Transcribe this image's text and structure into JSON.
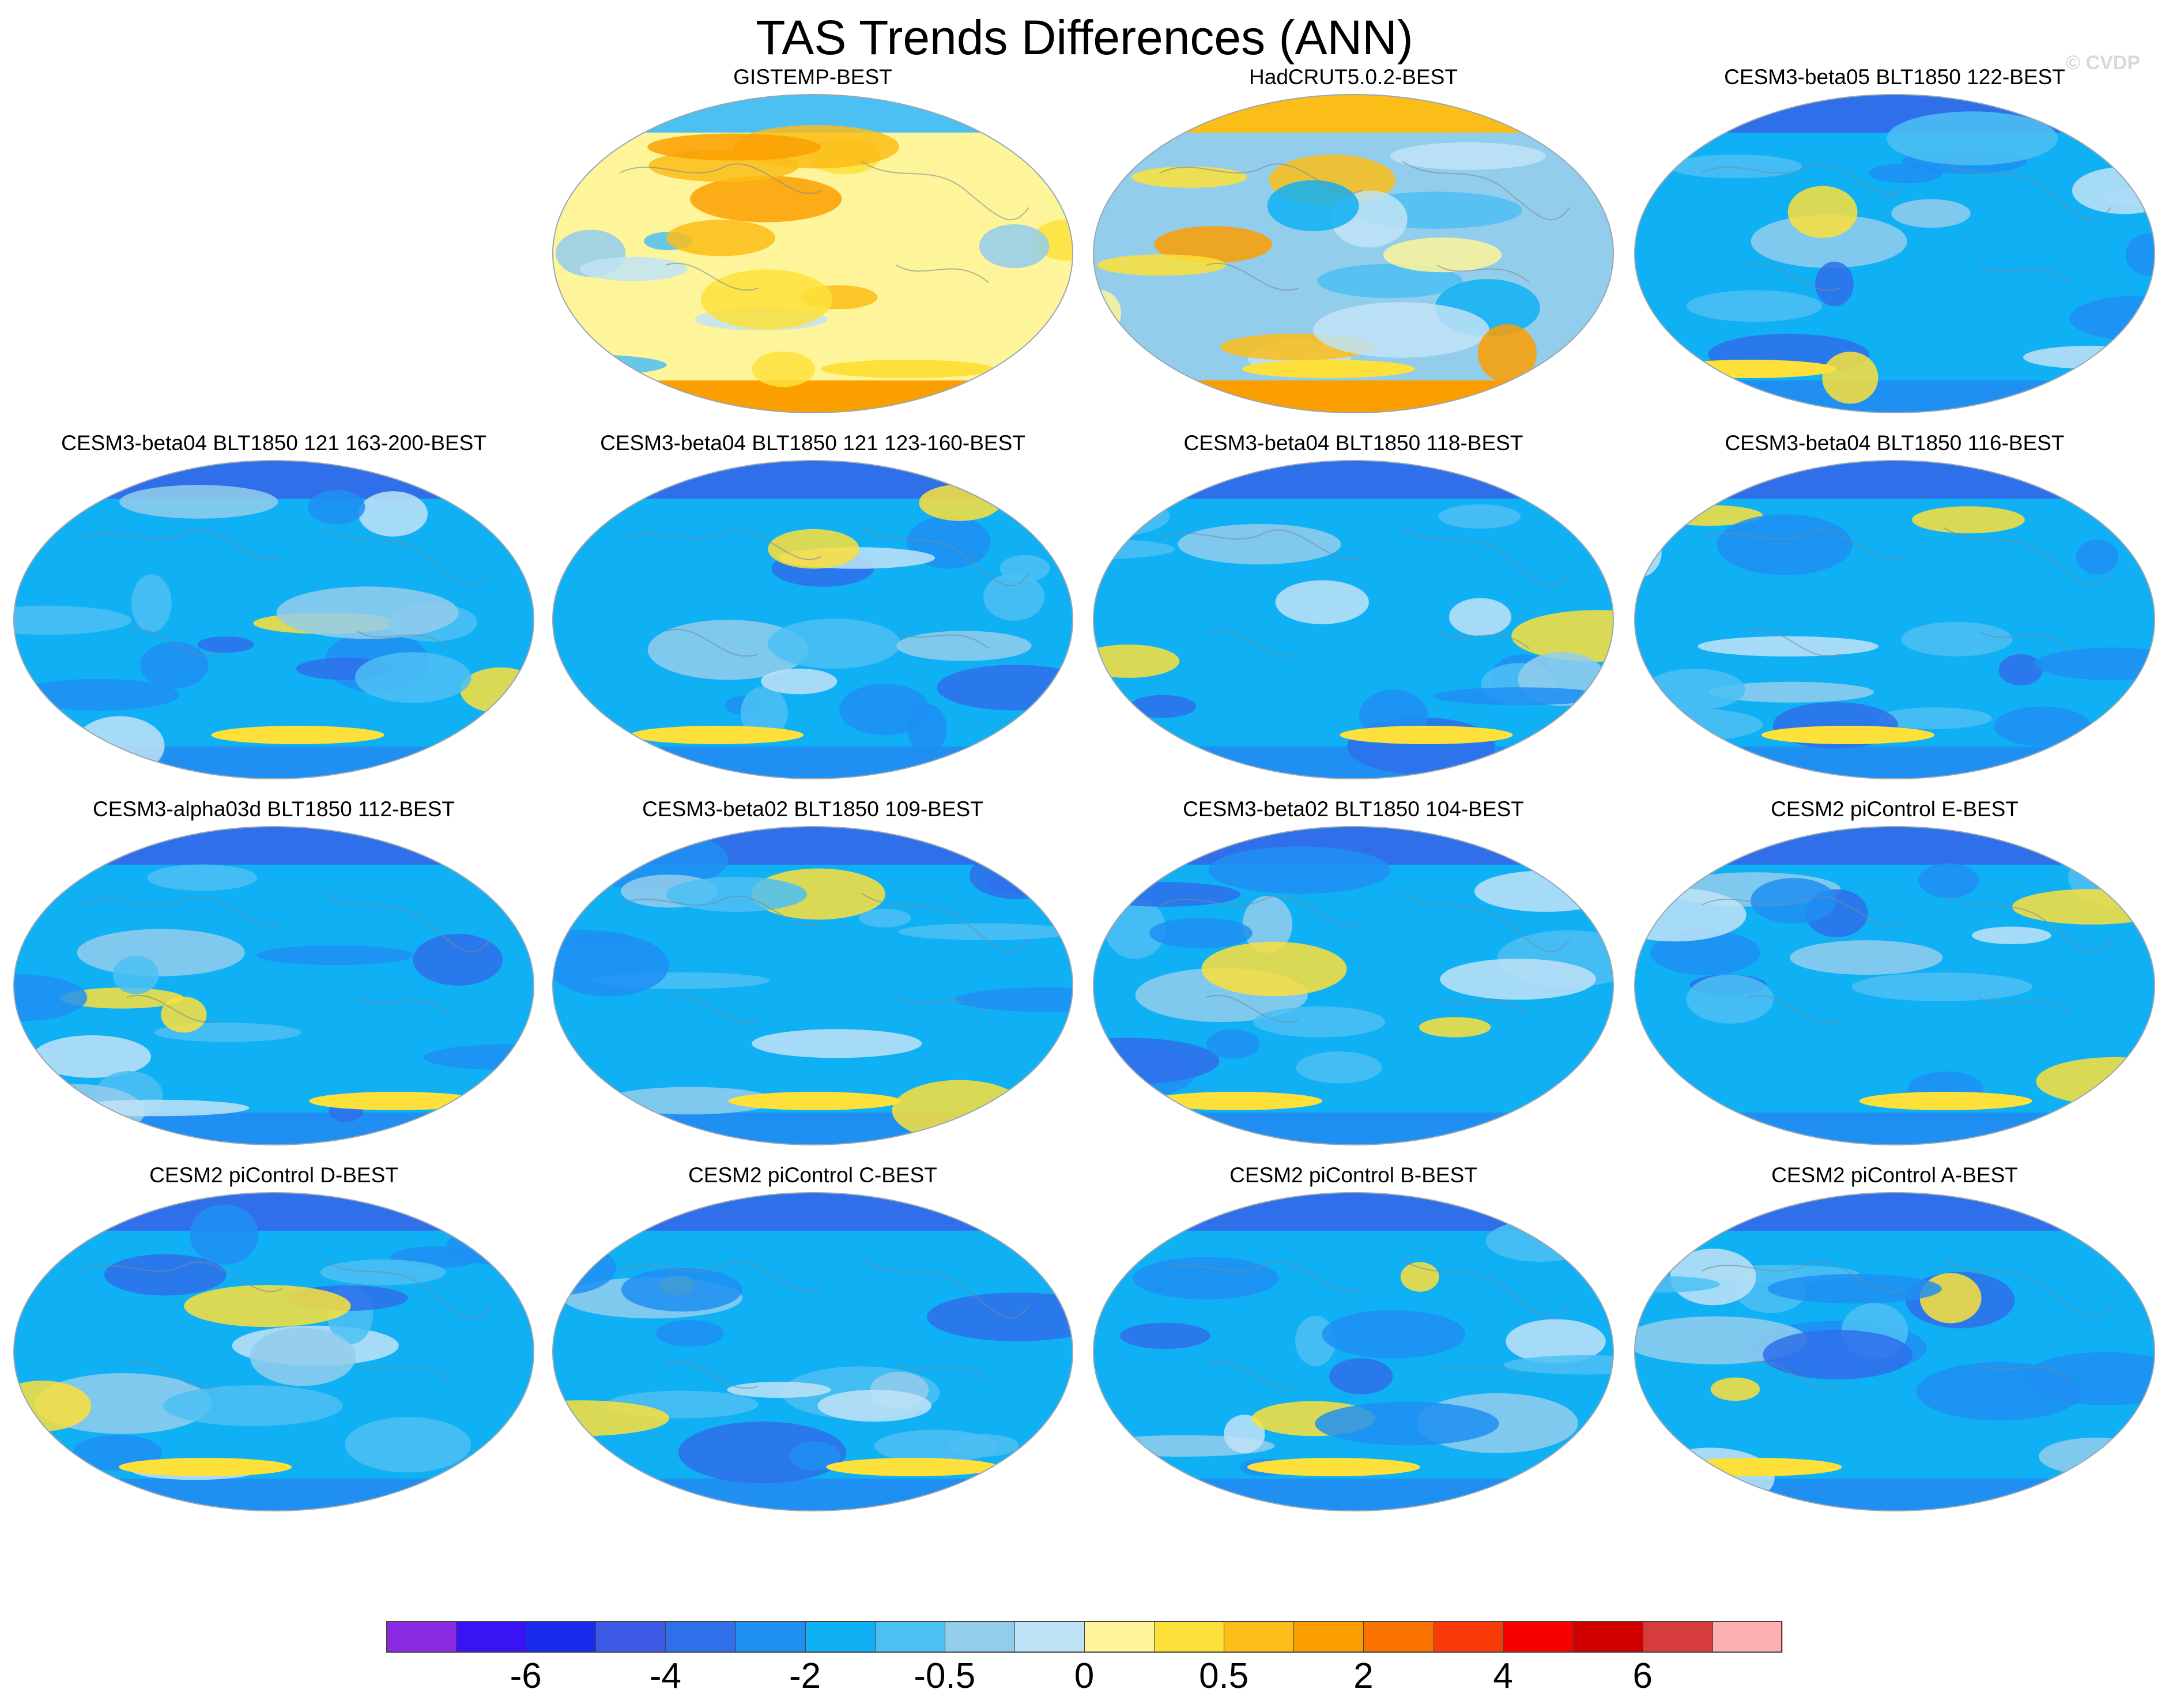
{
  "chart_data": {
    "type": "heatmap",
    "title": "TAS Trends Differences (ANN)",
    "watermark": "© CVDP",
    "projection": "global Robinson-style map panels",
    "panels": [
      {
        "title": "GISTEMP-BEST",
        "pattern": "warm"
      },
      {
        "title": "HadCRUT5.0.2-BEST",
        "pattern": "mixed"
      },
      {
        "title": "CESM3-beta05 BLT1850 122-BEST",
        "pattern": "cool"
      },
      {
        "title": "CESM3-beta04 BLT1850 121 163-200-BEST",
        "pattern": "cool"
      },
      {
        "title": "CESM3-beta04 BLT1850 121 123-160-BEST",
        "pattern": "cool"
      },
      {
        "title": "CESM3-beta04 BLT1850 118-BEST",
        "pattern": "cool"
      },
      {
        "title": "CESM3-beta04 BLT1850 116-BEST",
        "pattern": "cool"
      },
      {
        "title": "CESM3-alpha03d BLT1850 112-BEST",
        "pattern": "cool"
      },
      {
        "title": "CESM3-beta02 BLT1850 109-BEST",
        "pattern": "cool"
      },
      {
        "title": "CESM3-beta02 BLT1850 104-BEST",
        "pattern": "cool"
      },
      {
        "title": "CESM2 piControl E-BEST",
        "pattern": "cool"
      },
      {
        "title": "CESM2 piControl D-BEST",
        "pattern": "cool"
      },
      {
        "title": "CESM2 piControl C-BEST",
        "pattern": "cool"
      },
      {
        "title": "CESM2 piControl B-BEST",
        "pattern": "cool"
      },
      {
        "title": "CESM2 piControl A-BEST",
        "pattern": "cool"
      }
    ],
    "colorbar": {
      "colors": [
        "#8a2be2",
        "#3a13f5",
        "#1a2bf0",
        "#3c5ae6",
        "#2f70ea",
        "#1f8ff2",
        "#10b0f5",
        "#4cc0f3",
        "#93cdec",
        "#bfe3f6",
        "#fef59a",
        "#fde03a",
        "#fbbd18",
        "#fb9f00",
        "#fb7300",
        "#f93b09",
        "#f60000",
        "#d10000",
        "#d63c3c",
        "#fdb0b0"
      ],
      "tick_labels": [
        "-6",
        "-4",
        "-2",
        "-0.5",
        "0",
        "0.5",
        "2",
        "4",
        "6"
      ],
      "tick_boundaries": [
        2,
        4,
        6,
        8,
        10,
        12,
        14,
        16,
        18
      ]
    }
  }
}
